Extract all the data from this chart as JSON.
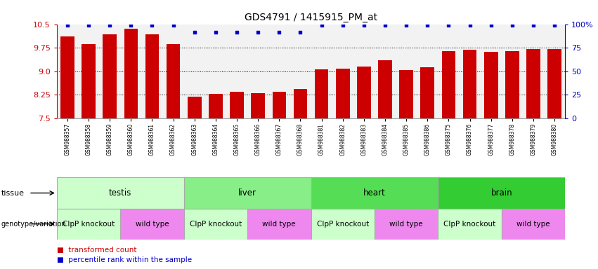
{
  "title": "GDS4791 / 1415915_PM_at",
  "samples": [
    "GSM988357",
    "GSM988358",
    "GSM988359",
    "GSM988360",
    "GSM988361",
    "GSM988362",
    "GSM988363",
    "GSM988364",
    "GSM988365",
    "GSM988366",
    "GSM988367",
    "GSM988368",
    "GSM988381",
    "GSM988382",
    "GSM988383",
    "GSM988384",
    "GSM988385",
    "GSM988386",
    "GSM988375",
    "GSM988376",
    "GSM988377",
    "GSM988378",
    "GSM988379",
    "GSM988380"
  ],
  "bar_values": [
    10.1,
    9.87,
    10.18,
    10.35,
    10.18,
    9.87,
    8.18,
    8.27,
    8.35,
    8.3,
    8.35,
    8.43,
    9.07,
    9.08,
    9.15,
    9.35,
    9.05,
    9.12,
    9.65,
    9.68,
    9.63,
    9.65,
    9.72,
    9.72
  ],
  "percentile_values": [
    10.47,
    10.47,
    10.47,
    10.47,
    10.47,
    10.47,
    10.25,
    10.25,
    10.25,
    10.25,
    10.25,
    10.25,
    10.47,
    10.47,
    10.47,
    10.47,
    10.47,
    10.47,
    10.47,
    10.47,
    10.47,
    10.47,
    10.47,
    10.47
  ],
  "ylim": [
    7.5,
    10.5
  ],
  "yticks": [
    7.5,
    8.25,
    9.0,
    9.75,
    10.5
  ],
  "bar_color": "#cc0000",
  "percentile_color": "#0000cc",
  "tissues": [
    {
      "label": "testis",
      "start": 0,
      "end": 6,
      "color": "#ccffcc"
    },
    {
      "label": "liver",
      "start": 6,
      "end": 12,
      "color": "#88ee88"
    },
    {
      "label": "heart",
      "start": 12,
      "end": 18,
      "color": "#55dd55"
    },
    {
      "label": "brain",
      "start": 18,
      "end": 24,
      "color": "#33cc33"
    }
  ],
  "genotypes": [
    {
      "label": "ClpP knockout",
      "start": 0,
      "end": 3,
      "color": "#ccffcc"
    },
    {
      "label": "wild type",
      "start": 3,
      "end": 6,
      "color": "#ee88ee"
    },
    {
      "label": "ClpP knockout",
      "start": 6,
      "end": 9,
      "color": "#ccffcc"
    },
    {
      "label": "wild type",
      "start": 9,
      "end": 12,
      "color": "#ee88ee"
    },
    {
      "label": "ClpP knockout",
      "start": 12,
      "end": 15,
      "color": "#ccffcc"
    },
    {
      "label": "wild type",
      "start": 15,
      "end": 18,
      "color": "#ee88ee"
    },
    {
      "label": "ClpP knockout",
      "start": 18,
      "end": 21,
      "color": "#ccffcc"
    },
    {
      "label": "wild type",
      "start": 21,
      "end": 24,
      "color": "#ee88ee"
    }
  ],
  "left_axis_color": "#cc0000",
  "right_axis_color": "#0000cc",
  "right_yticks": [
    0,
    25,
    50,
    75,
    100
  ],
  "right_ylabels": [
    "0",
    "25",
    "50",
    "75",
    "100%"
  ]
}
